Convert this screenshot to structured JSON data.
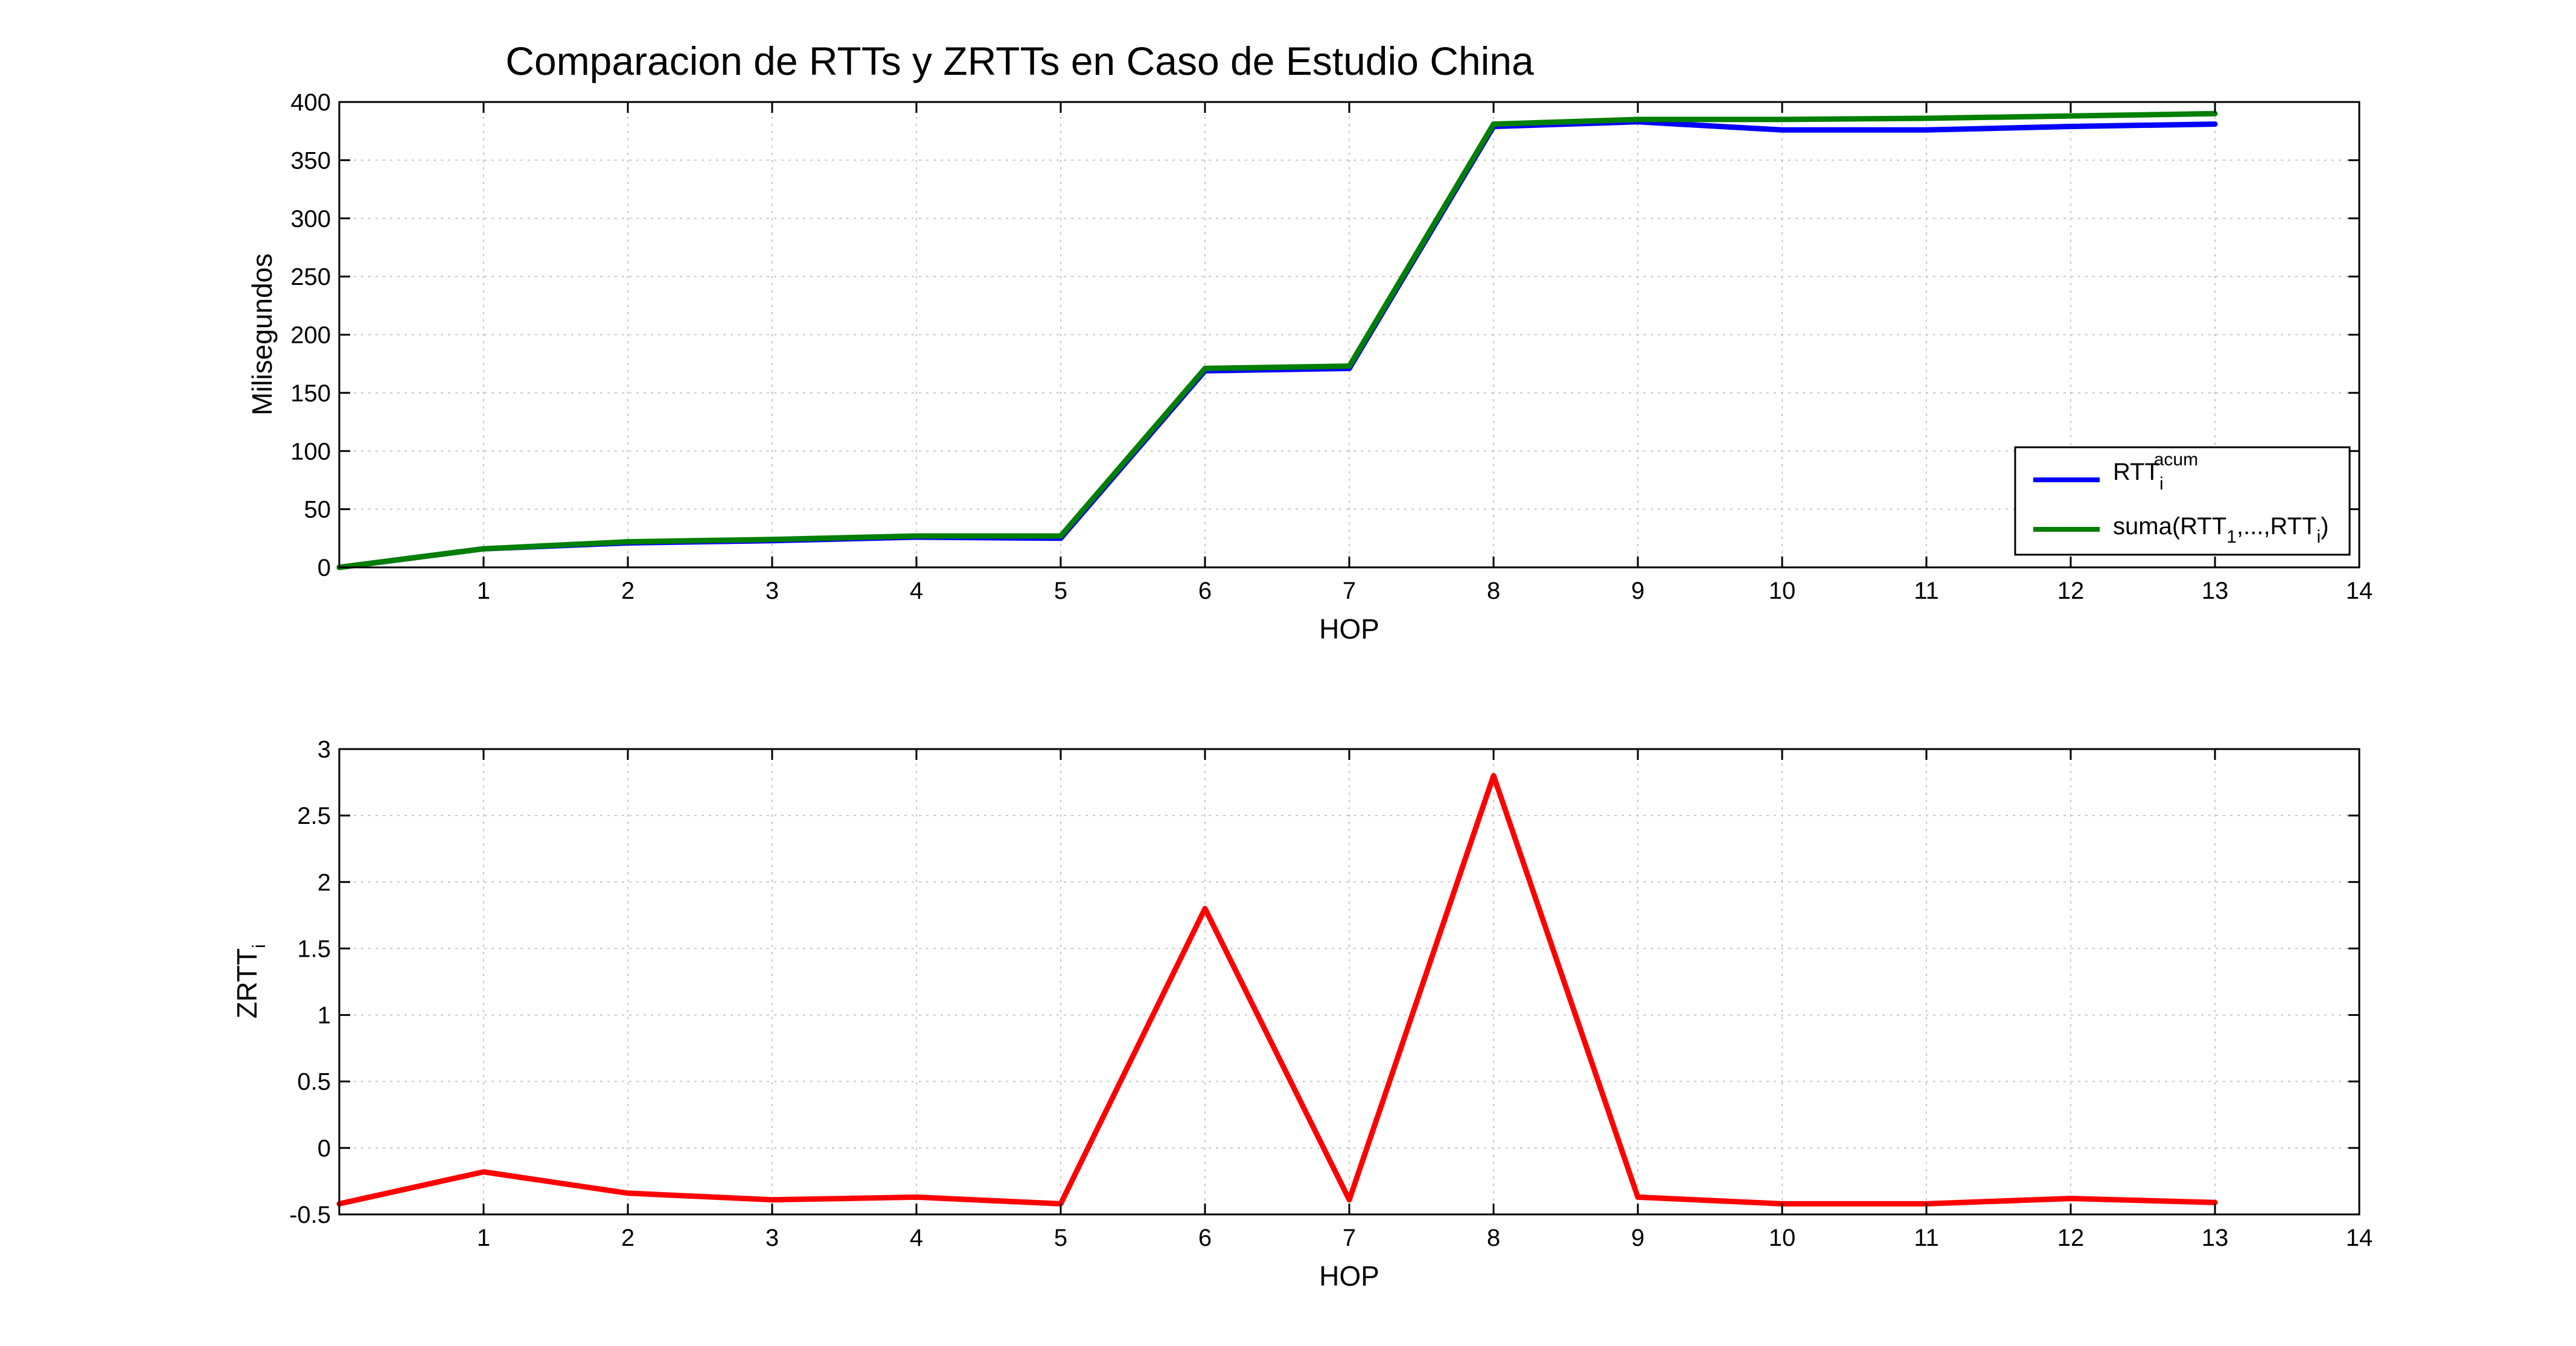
{
  "chart_data": [
    {
      "type": "line",
      "title": "Comparacion de RTTs y ZRTTs en Caso de Estudio China",
      "xlabel": "HOP",
      "ylabel": "Milisegundos",
      "xlim": [
        0,
        14
      ],
      "ylim": [
        0,
        400
      ],
      "xticks": [
        1,
        2,
        3,
        4,
        5,
        6,
        7,
        8,
        9,
        10,
        11,
        12,
        13,
        14
      ],
      "yticks": [
        0,
        50,
        100,
        150,
        200,
        250,
        300,
        350,
        400
      ],
      "grid": true,
      "legend_position": "bottom-right",
      "x": [
        0,
        1,
        2,
        3,
        4,
        5,
        6,
        7,
        8,
        9,
        10,
        11,
        12,
        13
      ],
      "series": [
        {
          "name": "RTT",
          "name_sub": "i",
          "name_sup": "acum",
          "color": "#0000ff",
          "values": [
            0,
            16,
            21,
            23,
            26,
            25,
            169,
            171,
            379,
            383,
            376,
            376,
            379,
            381
          ]
        },
        {
          "name": "suma(RTT",
          "name_sub": "1",
          "name_mid": ",...,RTT",
          "name_sub2": "i",
          "name_end": ")",
          "color": "#007f00",
          "values": [
            0,
            16,
            22,
            24,
            27,
            27,
            171,
            173,
            381,
            385,
            385,
            386,
            388,
            390
          ]
        }
      ]
    },
    {
      "type": "line",
      "xlabel": "HOP",
      "ylabel": "ZRTT",
      "ylabel_sub": "i",
      "xlim": [
        0,
        14
      ],
      "ylim": [
        -0.5,
        3
      ],
      "xticks": [
        1,
        2,
        3,
        4,
        5,
        6,
        7,
        8,
        9,
        10,
        11,
        12,
        13,
        14
      ],
      "yticks": [
        -0.5,
        0,
        0.5,
        1,
        1.5,
        2,
        2.5,
        3
      ],
      "grid": true,
      "x": [
        0,
        1,
        2,
        3,
        4,
        5,
        6,
        7,
        8,
        9,
        10,
        11,
        12,
        13
      ],
      "series": [
        {
          "color": "#ff0000",
          "values": [
            -0.42,
            -0.18,
            -0.34,
            -0.39,
            -0.37,
            -0.42,
            1.8,
            -0.39,
            2.8,
            -0.37,
            -0.42,
            -0.42,
            -0.38,
            -0.41
          ]
        }
      ]
    }
  ]
}
